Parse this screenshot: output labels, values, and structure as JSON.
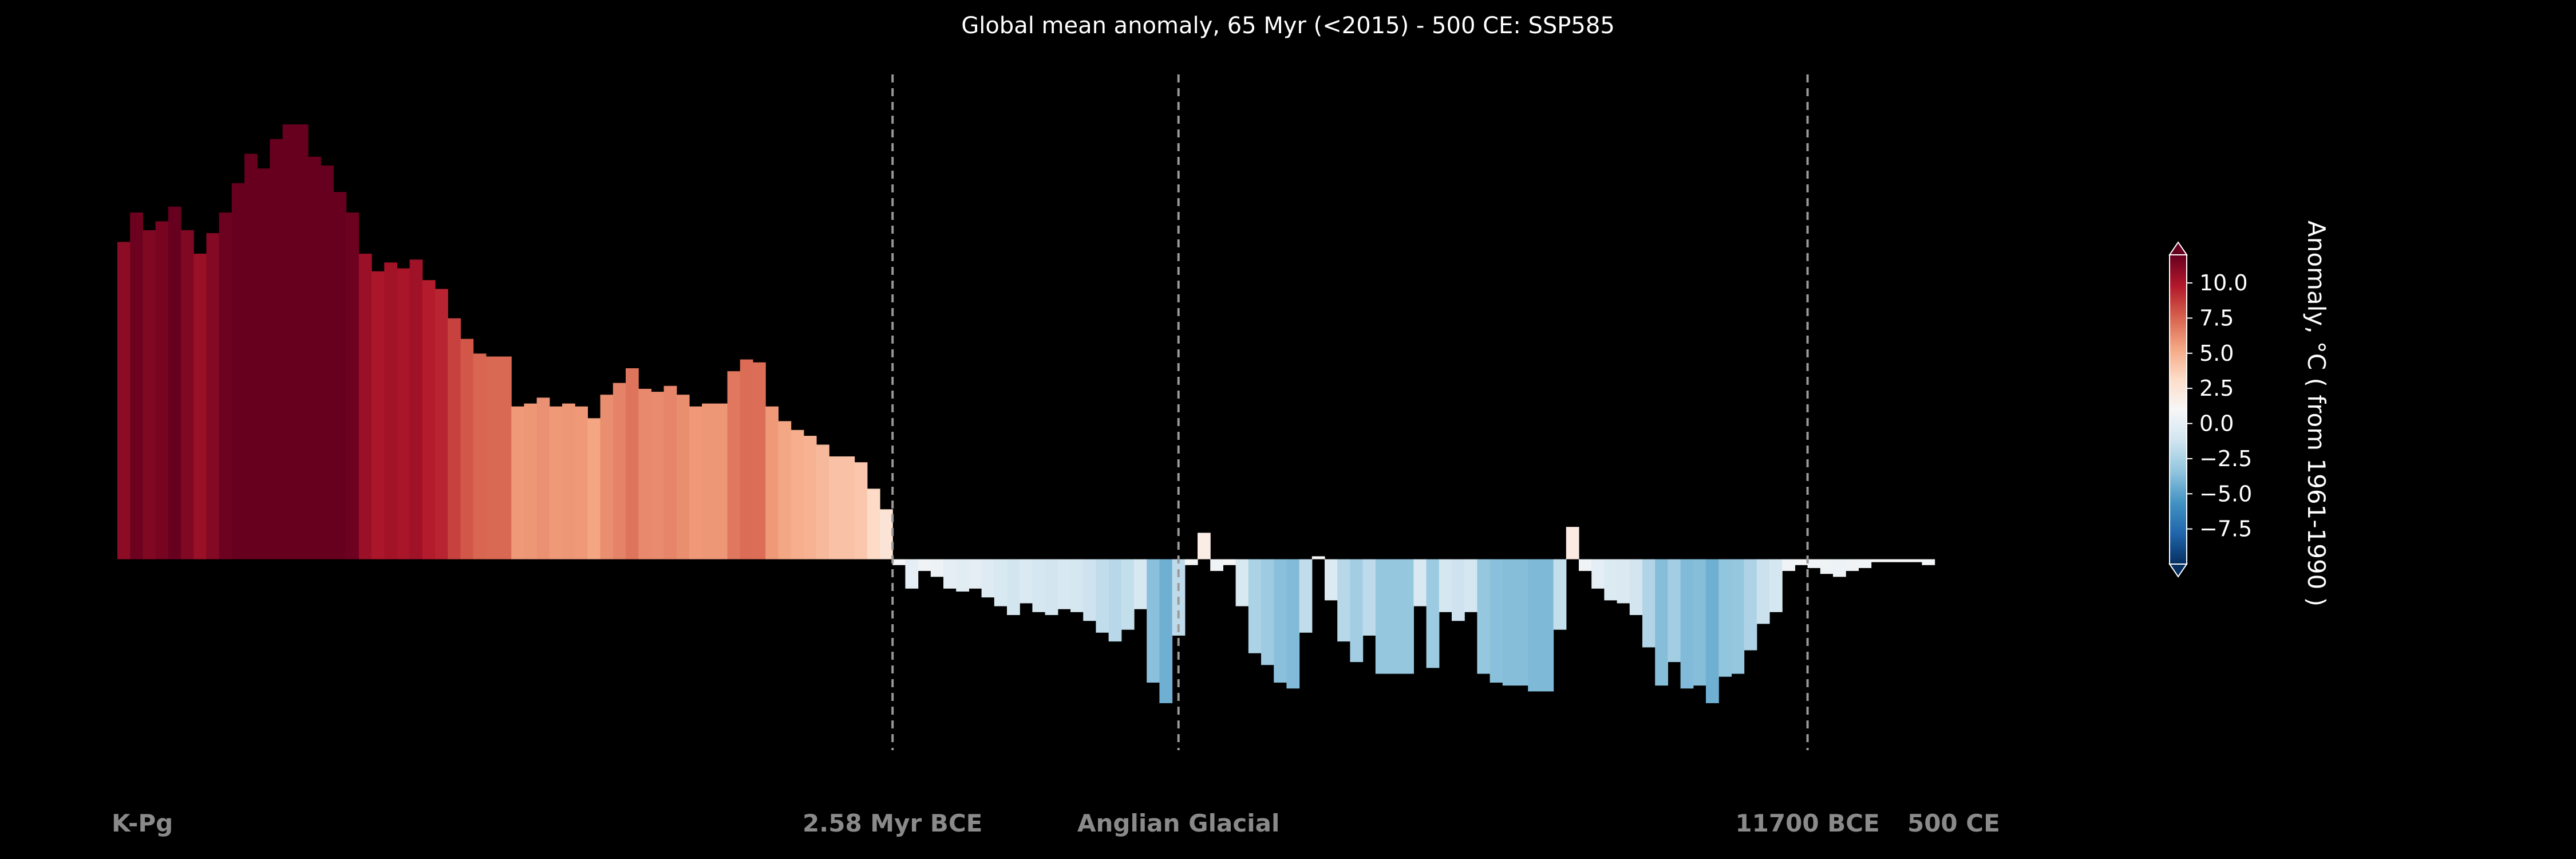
{
  "chart_data": {
    "type": "bar",
    "title": "Global mean anomaly, 65 Myr (<2015) - 500 CE: SSP585",
    "xlabel": "",
    "ylabel": "",
    "grid": false,
    "values": [
      10.8,
      11.8,
      11.2,
      11.5,
      12.0,
      11.2,
      10.4,
      11.1,
      11.8,
      12.8,
      13.8,
      13.3,
      14.3,
      14.8,
      14.8,
      13.7,
      13.4,
      12.5,
      11.8,
      10.4,
      9.8,
      10.1,
      9.9,
      10.2,
      9.5,
      9.2,
      8.2,
      7.5,
      7.0,
      6.9,
      6.9,
      5.2,
      5.3,
      5.5,
      5.2,
      5.3,
      5.2,
      4.8,
      5.6,
      6.0,
      6.5,
      5.8,
      5.7,
      5.9,
      5.6,
      5.2,
      5.3,
      5.3,
      6.4,
      6.8,
      6.7,
      5.2,
      4.7,
      4.4,
      4.2,
      3.9,
      3.5,
      3.5,
      3.3,
      2.4,
      1.7,
      -0.2,
      -1.0,
      -0.4,
      -0.6,
      -1.0,
      -1.1,
      -1.0,
      -1.3,
      -1.6,
      -1.9,
      -1.5,
      -1.8,
      -1.9,
      -1.7,
      -1.8,
      -2.1,
      -2.5,
      -2.8,
      -2.4,
      -1.7,
      -4.2,
      -4.9,
      -2.6,
      -0.2,
      0.9,
      -0.4,
      -0.2,
      -1.6,
      -3.2,
      -3.6,
      -4.2,
      -4.4,
      -2.5,
      0.1,
      -1.4,
      -2.8,
      -3.5,
      -2.6,
      -3.9,
      -3.9,
      -3.9,
      -1.6,
      -3.7,
      -1.8,
      -2.1,
      -1.8,
      -3.9,
      -4.2,
      -4.3,
      -4.3,
      -4.5,
      -4.5,
      -2.4,
      1.1,
      -0.4,
      -1.0,
      -1.4,
      -1.5,
      -1.9,
      -3.0,
      -4.3,
      -3.5,
      -4.4,
      -4.3,
      -4.9,
      -4.0,
      -3.9,
      -3.1,
      -2.2,
      -1.8,
      -0.4,
      -0.2,
      -0.3,
      -0.5,
      -0.6,
      -0.4,
      -0.3,
      -0.1,
      -0.1,
      -0.1,
      -0.1,
      -0.2
    ],
    "ylim": [
      -6.5,
      16.5
    ],
    "colorbar": {
      "label": "Anomaly, °C ( from 1961-1990 )",
      "ticks": [
        "10.0",
        "7.5",
        "5.0",
        "2.5",
        "0.0",
        "−2.5",
        "−5.0",
        "−7.5"
      ],
      "tick_values": [
        10.0,
        7.5,
        5.0,
        2.5,
        0.0,
        -2.5,
        -5.0,
        -7.5
      ],
      "vmin": -10,
      "vmax": 12,
      "colormap": "RdBu_r",
      "extend": "both"
    },
    "markers": [
      {
        "label": "2.58 Myr BCE",
        "bar_index": 61,
        "line": true
      },
      {
        "label": "Anglian Glacial",
        "bar_index": 83.5,
        "line": true
      },
      {
        "label": "11700 BCE",
        "bar_index": 133,
        "line": true
      },
      {
        "label": "500 CE",
        "bar_index": 144.5,
        "line": false
      }
    ],
    "start_label": "K-Pg",
    "colors": {
      "background": "#000000",
      "text": "#ffffff",
      "marker_text": "#8a8a8a",
      "dashed_line": "#9a9a9a"
    }
  }
}
